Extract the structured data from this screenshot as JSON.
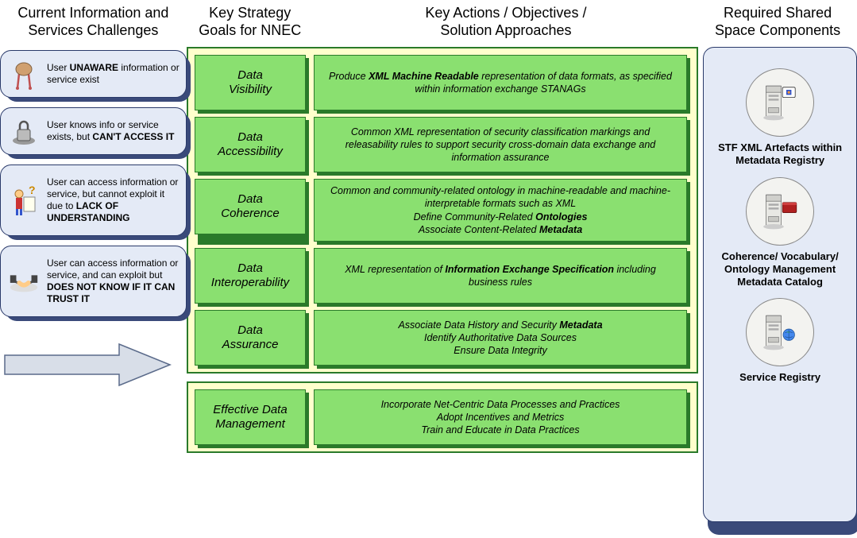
{
  "headers": {
    "col1": "Current Information and\nServices Challenges",
    "col2": "Key Strategy\nGoals for NNEC",
    "col3": "Key Actions / Objectives /\nSolution Approaches",
    "col4": "Required Shared\nSpace Components"
  },
  "challenges": [
    {
      "icon": "ostrich",
      "html": "User <b>UNAWARE</b> information or service exist"
    },
    {
      "icon": "lock",
      "html": "User knows info or service exists, but <b>CAN'T ACCESS IT</b>"
    },
    {
      "icon": "confused",
      "html": "User can access information or service, but cannot exploit it due to <b>LACK OF UNDERSTANDING</b>"
    },
    {
      "icon": "handshake",
      "html": "User can access information or service, and can exploit but <b>DOES NOT KNOW IF IT CAN TRUST IT</b>"
    }
  ],
  "rows": [
    {
      "goal": "Data\nVisibility",
      "action_html": "Produce <b>XML Machine Readable</b> representation of data formats, as specified within information exchange STANAGs"
    },
    {
      "goal": "Data\nAccessibility",
      "action_html": "Common XML representation of security classification markings and releasability rules to support security cross-domain data exchange and information assurance"
    },
    {
      "goal": "Data\nCoherence",
      "action_html": "Common and community-related ontology in machine-readable and machine-interpretable formats such as XML<br>Define Community-Related <b>Ontologies</b><br>Associate Content-Related <b>Metadata</b>"
    },
    {
      "goal": "Data\nInteroperability",
      "action_html": "XML representation of <b>Information Exchange Specification</b> including business rules"
    },
    {
      "goal": "Data\nAssurance",
      "action_html": "Associate Data History and Security <b>Metadata</b><br>Identify Authoritative Data Sources<br>Ensure Data Integrity"
    }
  ],
  "bottom_row": {
    "goal": "Effective Data\nManagement",
    "action_html": "Incorporate Net-Centric Data Processes and Practices<br>Adopt Incentives and Metrics<br>Train and Educate in Data Practices"
  },
  "components": [
    {
      "badge": "xml",
      "label": "STF XML Artefacts within Metadata Registry"
    },
    {
      "badge": "book",
      "label": "Coherence/ Vocabulary/ Ontology Management Metadata Catalog"
    },
    {
      "badge": "globe",
      "label": "Service Registry"
    }
  ],
  "colors": {
    "blue_panel_bg": "#e4eaf6",
    "blue_panel_border": "#2a3a6a",
    "blue_shadow": "#3a4a7a",
    "yellow_bg": "#ffffcc",
    "green_border": "#2a7a2a",
    "green_fill": "#8ae070",
    "arrow_fill": "#d8dee8",
    "arrow_stroke": "#5a6a8a"
  }
}
